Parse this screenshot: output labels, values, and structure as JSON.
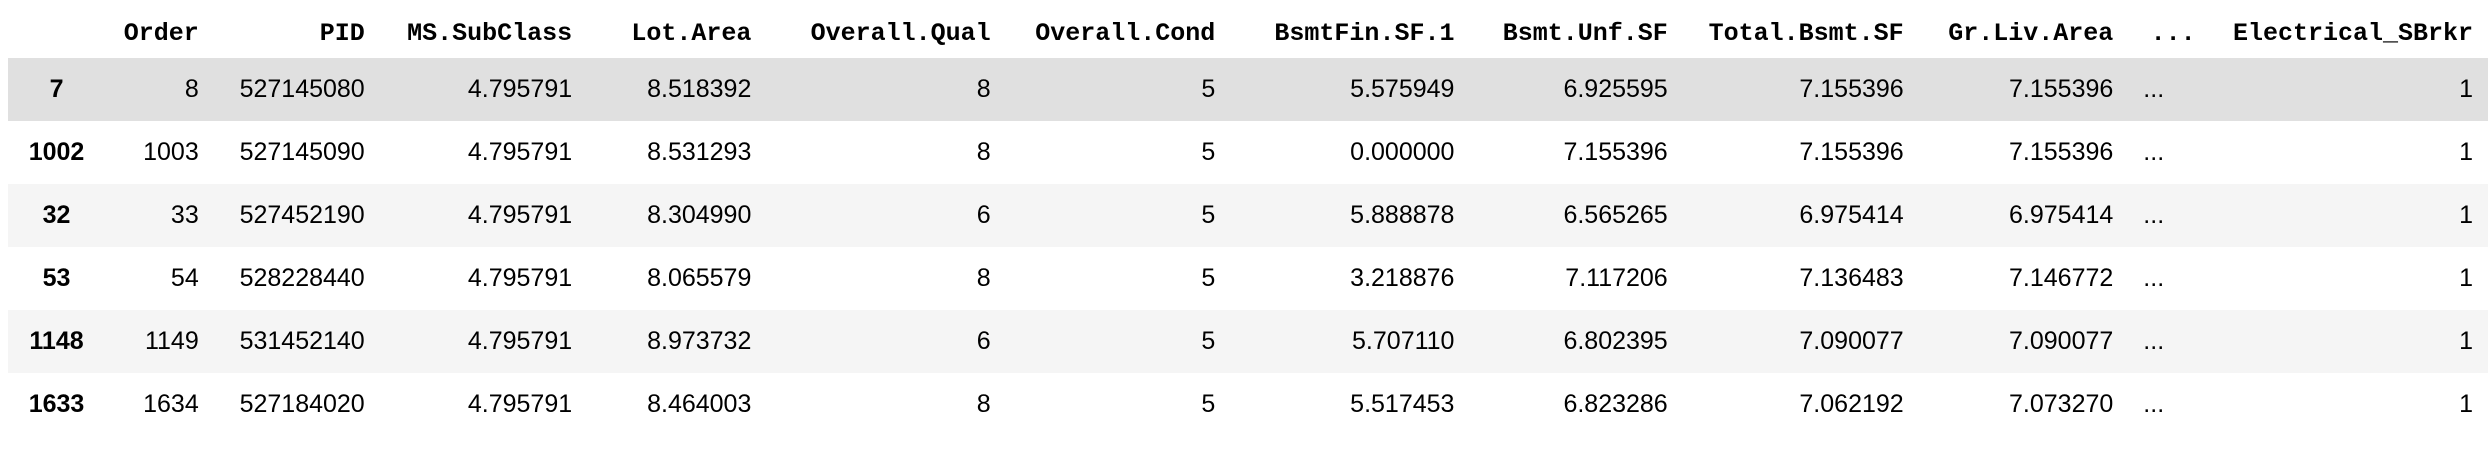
{
  "table": {
    "columns": [
      "",
      "Order",
      "PID",
      "MS.SubClass",
      "Lot.Area",
      "Overall.Qual",
      "Overall.Cond",
      "BsmtFin.SF.1",
      "Bsmt.Unf.SF",
      "Total.Bsmt.SF",
      "Gr.Liv.Area",
      "...",
      "Electrical_SBrkr"
    ],
    "rows": [
      {
        "index": "7",
        "cells": [
          "8",
          "527145080",
          "4.795791",
          "8.518392",
          "8",
          "5",
          "5.575949",
          "6.925595",
          "7.155396",
          "7.155396",
          "...",
          "1"
        ]
      },
      {
        "index": "1002",
        "cells": [
          "1003",
          "527145090",
          "4.795791",
          "8.531293",
          "8",
          "5",
          "0.000000",
          "7.155396",
          "7.155396",
          "7.155396",
          "...",
          "1"
        ]
      },
      {
        "index": "32",
        "cells": [
          "33",
          "527452190",
          "4.795791",
          "8.304990",
          "6",
          "5",
          "5.888878",
          "6.565265",
          "6.975414",
          "6.975414",
          "...",
          "1"
        ]
      },
      {
        "index": "53",
        "cells": [
          "54",
          "528228440",
          "4.795791",
          "8.065579",
          "8",
          "5",
          "3.218876",
          "7.117206",
          "7.136483",
          "7.146772",
          "...",
          "1"
        ]
      },
      {
        "index": "1148",
        "cells": [
          "1149",
          "531452140",
          "4.795791",
          "8.973732",
          "6",
          "5",
          "5.707110",
          "6.802395",
          "7.090077",
          "7.090077",
          "...",
          "1"
        ]
      },
      {
        "index": "1633",
        "cells": [
          "1634",
          "527184020",
          "4.795791",
          "8.464003",
          "8",
          "5",
          "5.517453",
          "6.823286",
          "7.062192",
          "7.073270",
          "...",
          "1"
        ]
      }
    ]
  },
  "colors": {
    "hover_row": "#e0e0e0",
    "striped_row": "#f5f5f5",
    "plain_row": "#ffffff"
  }
}
